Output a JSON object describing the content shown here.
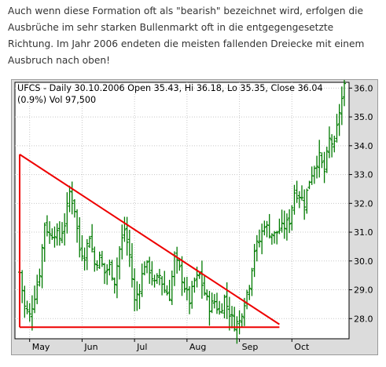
{
  "intro": {
    "text": "Auch wenn diese Formation oft als \"bearish\" bezeichnet wird, erfolgen die Ausbrüche im sehr starken Bullenmarkt oft in die entgegengesetzte Richtung. Im Jahr 2006 endeten die meisten fallenden Dreiecke mit einem Ausbruch nach oben!"
  },
  "chart": {
    "header_line1": "UFCS - Daily 30.10.2006 Open 35.43, Hi 36.18, Lo 35.35, Close 36.04",
    "header_line2": "(0.9%) Vol 97,500"
  },
  "chart_data": {
    "type": "ohlc",
    "ticker": "UFCS",
    "x_tick_labels": [
      "May",
      "Jun",
      "Jul",
      "Aug",
      "Sep",
      "Oct"
    ],
    "x_tick_positions": [
      4,
      25,
      46,
      67,
      88,
      109
    ],
    "y_tick_labels": [
      "28.0",
      "29.0",
      "30.0",
      "31.0",
      "32.0",
      "33.0",
      "34.0",
      "35.0",
      "36.0"
    ],
    "ylim": [
      27.3,
      36.2
    ],
    "xlim": [
      0,
      130
    ],
    "grid": true,
    "close_path": [
      [
        0,
        29.6
      ],
      [
        2,
        28.4
      ],
      [
        4,
        28.1
      ],
      [
        6,
        28.8
      ],
      [
        8,
        29.6
      ],
      [
        10,
        31.3
      ],
      [
        12,
        30.9
      ],
      [
        14,
        31.0
      ],
      [
        16,
        30.8
      ],
      [
        18,
        31.3
      ],
      [
        20,
        32.4
      ],
      [
        22,
        31.8
      ],
      [
        24,
        30.4
      ],
      [
        26,
        30.2
      ],
      [
        28,
        30.9
      ],
      [
        30,
        29.9
      ],
      [
        32,
        30.1
      ],
      [
        34,
        29.6
      ],
      [
        36,
        29.8
      ],
      [
        38,
        29.3
      ],
      [
        40,
        30.4
      ],
      [
        42,
        31.1
      ],
      [
        44,
        30.2
      ],
      [
        46,
        28.6
      ],
      [
        48,
        29.1
      ],
      [
        50,
        29.9
      ],
      [
        52,
        29.7
      ],
      [
        54,
        29.2
      ],
      [
        56,
        29.5
      ],
      [
        58,
        29.0
      ],
      [
        60,
        28.8
      ],
      [
        62,
        30.1
      ],
      [
        64,
        29.7
      ],
      [
        66,
        29.1
      ],
      [
        68,
        28.6
      ],
      [
        70,
        29.3
      ],
      [
        72,
        29.5
      ],
      [
        74,
        28.9
      ],
      [
        76,
        28.4
      ],
      [
        78,
        28.6
      ],
      [
        80,
        28.2
      ],
      [
        82,
        28.7
      ],
      [
        84,
        28.2
      ],
      [
        86,
        27.8
      ],
      [
        88,
        27.9
      ],
      [
        90,
        28.6
      ],
      [
        92,
        29.2
      ],
      [
        94,
        30.4
      ],
      [
        96,
        30.7
      ],
      [
        98,
        31.3
      ],
      [
        100,
        31.0
      ],
      [
        102,
        30.9
      ],
      [
        104,
        31.1
      ],
      [
        106,
        31.2
      ],
      [
        108,
        31.4
      ],
      [
        110,
        32.4
      ],
      [
        112,
        32.3
      ],
      [
        114,
        32.0
      ],
      [
        116,
        32.8
      ],
      [
        118,
        33.3
      ],
      [
        120,
        33.6
      ],
      [
        122,
        33.1
      ],
      [
        124,
        34.2
      ],
      [
        126,
        34.0
      ],
      [
        128,
        35.2
      ],
      [
        130,
        36.04
      ]
    ],
    "annotations": {
      "upper_trendline": [
        [
          0,
          33.7
        ],
        [
          104,
          27.8
        ]
      ],
      "lower_trendline": [
        [
          0,
          27.7
        ],
        [
          104,
          27.7
        ]
      ],
      "apex_line": [
        [
          0,
          27.7
        ],
        [
          0,
          33.7
        ]
      ]
    }
  },
  "colors": {
    "plot_bg": "#ffffff",
    "frame_bg": "#dcdcdc",
    "bar": "#007a00",
    "trendline": "#ee0000",
    "grid": "#c8c8c8",
    "axis": "#000000",
    "text": "#333333"
  }
}
